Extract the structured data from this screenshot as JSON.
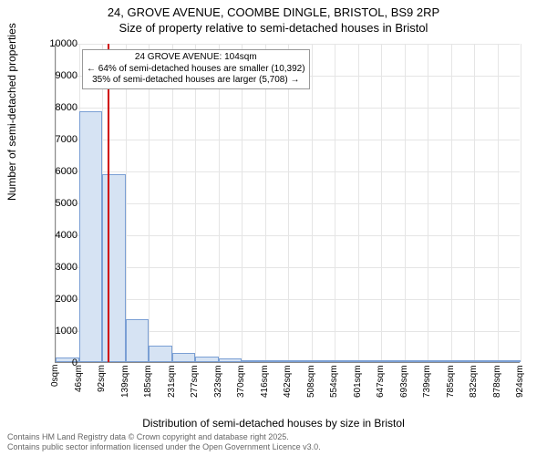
{
  "title_line1": "24, GROVE AVENUE, COOMBE DINGLE, BRISTOL, BS9 2RP",
  "title_line2": "Size of property relative to semi-detached houses in Bristol",
  "chart": {
    "type": "histogram",
    "ylabel": "Number of semi-detached properties",
    "xlabel": "Distribution of semi-detached houses by size in Bristol",
    "ylim": [
      0,
      10000
    ],
    "ytick_step": 1000,
    "yticks": [
      0,
      1000,
      2000,
      3000,
      4000,
      5000,
      6000,
      7000,
      8000,
      9000,
      10000
    ],
    "xticks": [
      "0sqm",
      "46sqm",
      "92sqm",
      "139sqm",
      "185sqm",
      "231sqm",
      "277sqm",
      "323sqm",
      "370sqm",
      "416sqm",
      "462sqm",
      "508sqm",
      "554sqm",
      "601sqm",
      "647sqm",
      "693sqm",
      "739sqm",
      "785sqm",
      "832sqm",
      "878sqm",
      "924sqm"
    ],
    "bars": [
      {
        "x_index": 0,
        "value": 130
      },
      {
        "x_index": 1,
        "value": 7850
      },
      {
        "x_index": 2,
        "value": 5900
      },
      {
        "x_index": 3,
        "value": 1350
      },
      {
        "x_index": 4,
        "value": 520
      },
      {
        "x_index": 5,
        "value": 300
      },
      {
        "x_index": 6,
        "value": 170
      },
      {
        "x_index": 7,
        "value": 110
      },
      {
        "x_index": 8,
        "value": 50
      },
      {
        "x_index": 9,
        "value": 35
      },
      {
        "x_index": 10,
        "value": 22
      },
      {
        "x_index": 11,
        "value": 18
      },
      {
        "x_index": 12,
        "value": 12
      },
      {
        "x_index": 13,
        "value": 9
      },
      {
        "x_index": 14,
        "value": 8
      },
      {
        "x_index": 15,
        "value": 6
      },
      {
        "x_index": 16,
        "value": 5
      },
      {
        "x_index": 17,
        "value": 4
      },
      {
        "x_index": 18,
        "value": 4
      },
      {
        "x_index": 19,
        "value": 3
      }
    ],
    "bar_color": "#d6e3f3",
    "bar_border_color": "#7a9fd4",
    "grid_color": "#e5e5e5",
    "background_color": "#ffffff",
    "marker": {
      "position_sqm": 104,
      "color": "#d00000"
    },
    "annotation": {
      "line1": "24 GROVE AVENUE: 104sqm",
      "line2": "← 64% of semi-detached houses are smaller (10,392)",
      "line3": "35% of semi-detached houses are larger (5,708) →"
    }
  },
  "footer_line1": "Contains HM Land Registry data © Crown copyright and database right 2025.",
  "footer_line2": "Contains public sector information licensed under the Open Government Licence v3.0."
}
